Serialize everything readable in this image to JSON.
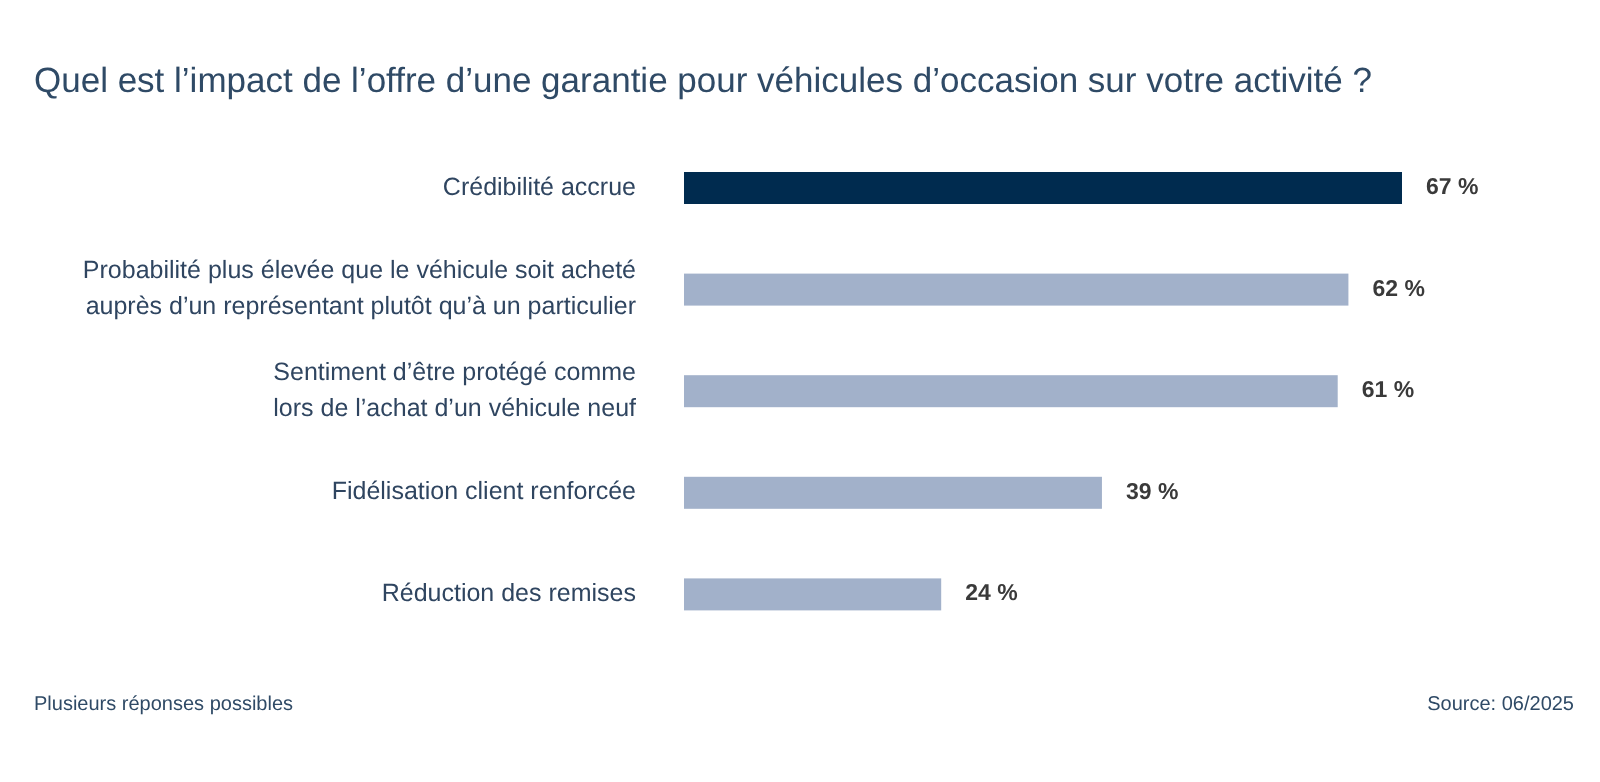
{
  "chart_data": {
    "type": "bar",
    "orientation": "horizontal",
    "title": "Quel est l’impact de l’offre d’une garantie pour véhicules d’occasion sur votre activité ?",
    "categories": [
      "Crédibilité accrue",
      "Probabilité plus élevée que le véhicule soit acheté\nauprès d’un représentant plutôt qu’à un particulier",
      "Sentiment d’être protégé comme\nlors de l’achat d’un véhicule neuf",
      "Fidélisation client renforcée",
      "Réduction des remises"
    ],
    "values": [
      67,
      62,
      61,
      39,
      24
    ],
    "colors": [
      "#002b4f",
      "#a2b1ca",
      "#a2b1ca",
      "#a2b1ca",
      "#a2b1ca"
    ],
    "value_labels": [
      "67 %",
      "62 %",
      "61 %",
      "39 %",
      "24 %"
    ],
    "annotations": [
      "Plusieurs réponses possibles",
      "Source: 06/2025"
    ]
  }
}
